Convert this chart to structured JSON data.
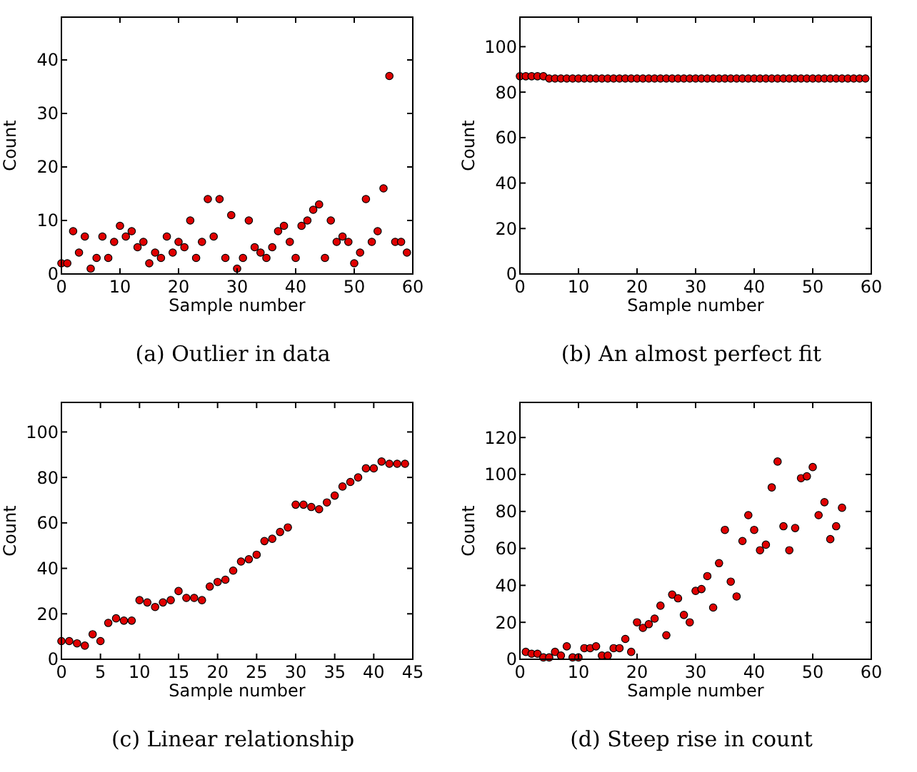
{
  "chart_data": [
    {
      "type": "scatter",
      "title": "(a)  Outlier in data",
      "xlabel": "Sample number",
      "ylabel": "Count",
      "xlim": [
        0,
        60
      ],
      "xticks": [
        0,
        10,
        20,
        30,
        40,
        50,
        60
      ],
      "ylim": [
        0,
        48
      ],
      "yticks": [
        0,
        10,
        20,
        30,
        40
      ],
      "marker": "circle",
      "grid": false,
      "series": [
        {
          "color": "#e00000",
          "x": [
            0,
            1,
            2,
            3,
            4,
            5,
            6,
            7,
            8,
            9,
            10,
            11,
            12,
            13,
            14,
            15,
            16,
            17,
            18,
            19,
            20,
            21,
            22,
            23,
            24,
            25,
            26,
            27,
            28,
            29,
            30,
            31,
            32,
            33,
            34,
            35,
            36,
            37,
            38,
            39,
            40,
            41,
            42,
            43,
            44,
            45,
            46,
            47,
            48,
            49,
            50,
            51,
            52,
            53,
            54,
            55,
            56,
            57,
            58,
            59
          ],
          "values": [
            2,
            2,
            8,
            4,
            7,
            1,
            3,
            7,
            3,
            6,
            9,
            7,
            8,
            5,
            6,
            2,
            4,
            3,
            7,
            4,
            6,
            5,
            10,
            3,
            6,
            14,
            7,
            14,
            3,
            11,
            1,
            3,
            10,
            5,
            4,
            3,
            5,
            8,
            9,
            6,
            3,
            9,
            10,
            12,
            13,
            3,
            10,
            6,
            7,
            6,
            2,
            4,
            14,
            6,
            8,
            16,
            37,
            6,
            6,
            4
          ]
        }
      ]
    },
    {
      "type": "scatter",
      "title": "(b)  An almost perfect fit",
      "xlabel": "Sample number",
      "ylabel": "Count",
      "xlim": [
        0,
        60
      ],
      "xticks": [
        0,
        10,
        20,
        30,
        40,
        50,
        60
      ],
      "ylim": [
        0,
        113
      ],
      "yticks": [
        0,
        20,
        40,
        60,
        80,
        100
      ],
      "marker": "circle",
      "grid": false,
      "series": [
        {
          "color": "#e00000",
          "x": [
            0,
            1,
            2,
            3,
            4,
            5,
            6,
            7,
            8,
            9,
            10,
            11,
            12,
            13,
            14,
            15,
            16,
            17,
            18,
            19,
            20,
            21,
            22,
            23,
            24,
            25,
            26,
            27,
            28,
            29,
            30,
            31,
            32,
            33,
            34,
            35,
            36,
            37,
            38,
            39,
            40,
            41,
            42,
            43,
            44,
            45,
            46,
            47,
            48,
            49,
            50,
            51,
            52,
            53,
            54,
            55,
            56,
            57,
            58,
            59
          ],
          "values": [
            87,
            87,
            87,
            87,
            87,
            86,
            86,
            86,
            86,
            86,
            86,
            86,
            86,
            86,
            86,
            86,
            86,
            86,
            86,
            86,
            86,
            86,
            86,
            86,
            86,
            86,
            86,
            86,
            86,
            86,
            86,
            86,
            86,
            86,
            86,
            86,
            86,
            86,
            86,
            86,
            86,
            86,
            86,
            86,
            86,
            86,
            86,
            86,
            86,
            86,
            86,
            86,
            86,
            86,
            86,
            86,
            86,
            86,
            86,
            86
          ]
        }
      ]
    },
    {
      "type": "scatter",
      "title": "(c)  Linear relationship",
      "xlabel": "Sample number",
      "ylabel": "Count",
      "xlim": [
        0,
        45
      ],
      "xticks": [
        0,
        5,
        10,
        15,
        20,
        25,
        30,
        35,
        40,
        45
      ],
      "ylim": [
        0,
        113
      ],
      "yticks": [
        0,
        20,
        40,
        60,
        80,
        100
      ],
      "marker": "circle",
      "grid": false,
      "series": [
        {
          "color": "#e00000",
          "x": [
            0,
            1,
            2,
            3,
            4,
            5,
            6,
            7,
            8,
            9,
            10,
            11,
            12,
            13,
            14,
            15,
            16,
            17,
            18,
            19,
            20,
            21,
            22,
            23,
            24,
            25,
            26,
            27,
            28,
            29,
            30,
            31,
            32,
            33,
            34,
            35,
            36,
            37,
            38,
            39,
            40,
            41,
            42,
            43,
            44
          ],
          "values": [
            8,
            8,
            7,
            6,
            11,
            8,
            16,
            18,
            17,
            17,
            26,
            25,
            23,
            25,
            26,
            30,
            27,
            27,
            26,
            32,
            34,
            35,
            39,
            43,
            44,
            46,
            52,
            53,
            56,
            58,
            68,
            68,
            67,
            66,
            69,
            72,
            76,
            78,
            80,
            84,
            84,
            87,
            86,
            86,
            86
          ]
        }
      ]
    },
    {
      "type": "scatter",
      "title": "(d)  Steep rise in count",
      "xlabel": "Sample number",
      "ylabel": "Count",
      "xlim": [
        0,
        60
      ],
      "xticks": [
        0,
        10,
        20,
        30,
        40,
        50,
        60
      ],
      "ylim": [
        0,
        139
      ],
      "yticks": [
        0,
        20,
        40,
        60,
        80,
        100,
        120
      ],
      "marker": "circle",
      "grid": false,
      "series": [
        {
          "color": "#e00000",
          "x": [
            1,
            2,
            3,
            4,
            5,
            6,
            7,
            8,
            9,
            10,
            11,
            12,
            13,
            14,
            15,
            16,
            17,
            18,
            19,
            20,
            21,
            22,
            23,
            24,
            25,
            26,
            27,
            28,
            29,
            30,
            31,
            32,
            33,
            34,
            35,
            36,
            37,
            38,
            39,
            40,
            41,
            42,
            43,
            44,
            45,
            46,
            47,
            48,
            49,
            50,
            51,
            52,
            53,
            54,
            55
          ],
          "values": [
            4,
            3,
            3,
            1,
            1,
            4,
            2,
            7,
            1,
            1,
            6,
            6,
            7,
            2,
            2,
            6,
            6,
            11,
            4,
            20,
            17,
            19,
            22,
            29,
            13,
            35,
            33,
            24,
            20,
            37,
            38,
            45,
            28,
            52,
            70,
            42,
            34,
            64,
            78,
            70,
            59,
            62,
            93,
            107,
            72,
            59,
            71,
            98,
            99,
            104,
            78,
            85,
            65,
            72,
            82
          ]
        }
      ]
    }
  ]
}
